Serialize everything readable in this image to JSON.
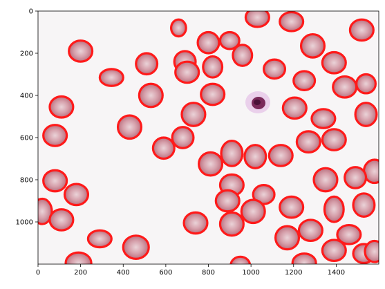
{
  "figure": {
    "description_type": "microscope image of red blood cells with segmentation outlines plotted on pixel axes",
    "outline_color": "#ff0000",
    "cell_fill": "#d9a5ae",
    "background_color": "#f7f5f6"
  },
  "axes": {
    "x_ticks": [
      "0",
      "200",
      "400",
      "600",
      "800",
      "1000",
      "1200",
      "1400"
    ],
    "y_ticks": [
      "0",
      "200",
      "400",
      "600",
      "800",
      "1000"
    ],
    "x_range": [
      0,
      1600
    ],
    "y_range": [
      1200,
      0
    ]
  }
}
